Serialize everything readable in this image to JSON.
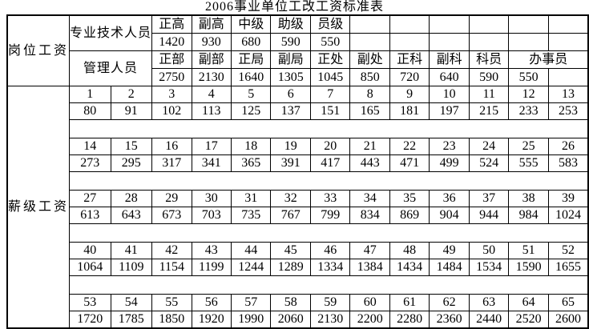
{
  "title": "2006事业单位工改工资标准表",
  "salary_table": {
    "post_wage_header": "岗位工资",
    "grade_wage_header": "薪级工资",
    "sections": [
      {
        "label": "专业技术人员",
        "ranks": [
          {
            "t": "正高"
          },
          {
            "t": "副高"
          },
          {
            "t": "中级"
          },
          {
            "t": "助级"
          },
          {
            "t": "员级"
          },
          {
            "t": ""
          },
          {
            "t": ""
          },
          {
            "t": ""
          },
          {
            "t": ""
          },
          {
            "t": ""
          },
          {
            "t": ""
          }
        ],
        "values": [
          {
            "t": "1420"
          },
          {
            "t": "930"
          },
          {
            "t": "680"
          },
          {
            "t": "590"
          },
          {
            "t": "550"
          },
          {
            "t": ""
          },
          {
            "t": ""
          },
          {
            "t": ""
          },
          {
            "t": ""
          },
          {
            "t": ""
          },
          {
            "t": ""
          }
        ]
      },
      {
        "label": "管理人员",
        "ranks": [
          {
            "t": "正部"
          },
          {
            "t": "副部"
          },
          {
            "t": "正局"
          },
          {
            "t": "副局"
          },
          {
            "t": "正处"
          },
          {
            "t": "副处"
          },
          {
            "t": "正科"
          },
          {
            "t": "副科"
          },
          {
            "t": "科员"
          },
          {
            "t": "办事员",
            "span": 2,
            "align": "left"
          }
        ],
        "values": [
          {
            "t": "2750"
          },
          {
            "t": "2130"
          },
          {
            "t": "1640"
          },
          {
            "t": "1305"
          },
          {
            "t": "1045"
          },
          {
            "t": "850"
          },
          {
            "t": "720"
          },
          {
            "t": "640"
          },
          {
            "t": "590"
          },
          {
            "t": "550"
          },
          {
            "t": ""
          }
        ]
      }
    ],
    "grade_groups": [
      {
        "grades": [
          "1",
          "2",
          "3",
          "4",
          "5",
          "6",
          "7",
          "8",
          "9",
          "10",
          "11",
          "12",
          "13"
        ],
        "values": [
          "80",
          "91",
          "102",
          "113",
          "125",
          "137",
          "151",
          "165",
          "181",
          "197",
          "215",
          "233",
          "253"
        ]
      },
      {
        "grades": [
          "14",
          "15",
          "16",
          "17",
          "18",
          "19",
          "20",
          "21",
          "22",
          "23",
          "24",
          "25",
          "26"
        ],
        "values": [
          "273",
          "295",
          "317",
          "341",
          "365",
          "391",
          "417",
          "443",
          "471",
          "499",
          "524",
          "555",
          "583"
        ]
      },
      {
        "grades": [
          "27",
          "28",
          "29",
          "30",
          "31",
          "32",
          "33",
          "34",
          "35",
          "36",
          "37",
          "38",
          "39"
        ],
        "values": [
          "613",
          "643",
          "673",
          "703",
          "735",
          "767",
          "799",
          "834",
          "869",
          "904",
          "944",
          "984",
          "1024"
        ]
      },
      {
        "grades": [
          "40",
          "41",
          "42",
          "43",
          "44",
          "45",
          "46",
          "47",
          "48",
          "49",
          "50",
          "51",
          "52"
        ],
        "values": [
          "1064",
          "1109",
          "1154",
          "1199",
          "1244",
          "1289",
          "1334",
          "1384",
          "1434",
          "1484",
          "1534",
          "1590",
          "1655"
        ]
      },
      {
        "grades": [
          "53",
          "54",
          "55",
          "56",
          "57",
          "58",
          "59",
          "60",
          "61",
          "62",
          "63",
          "64",
          "65"
        ],
        "values": [
          "1720",
          "1785",
          "1850",
          "1920",
          "1990",
          "2060",
          "2130",
          "2200",
          "2280",
          "2360",
          "2440",
          "2520",
          "2600"
        ]
      }
    ]
  }
}
